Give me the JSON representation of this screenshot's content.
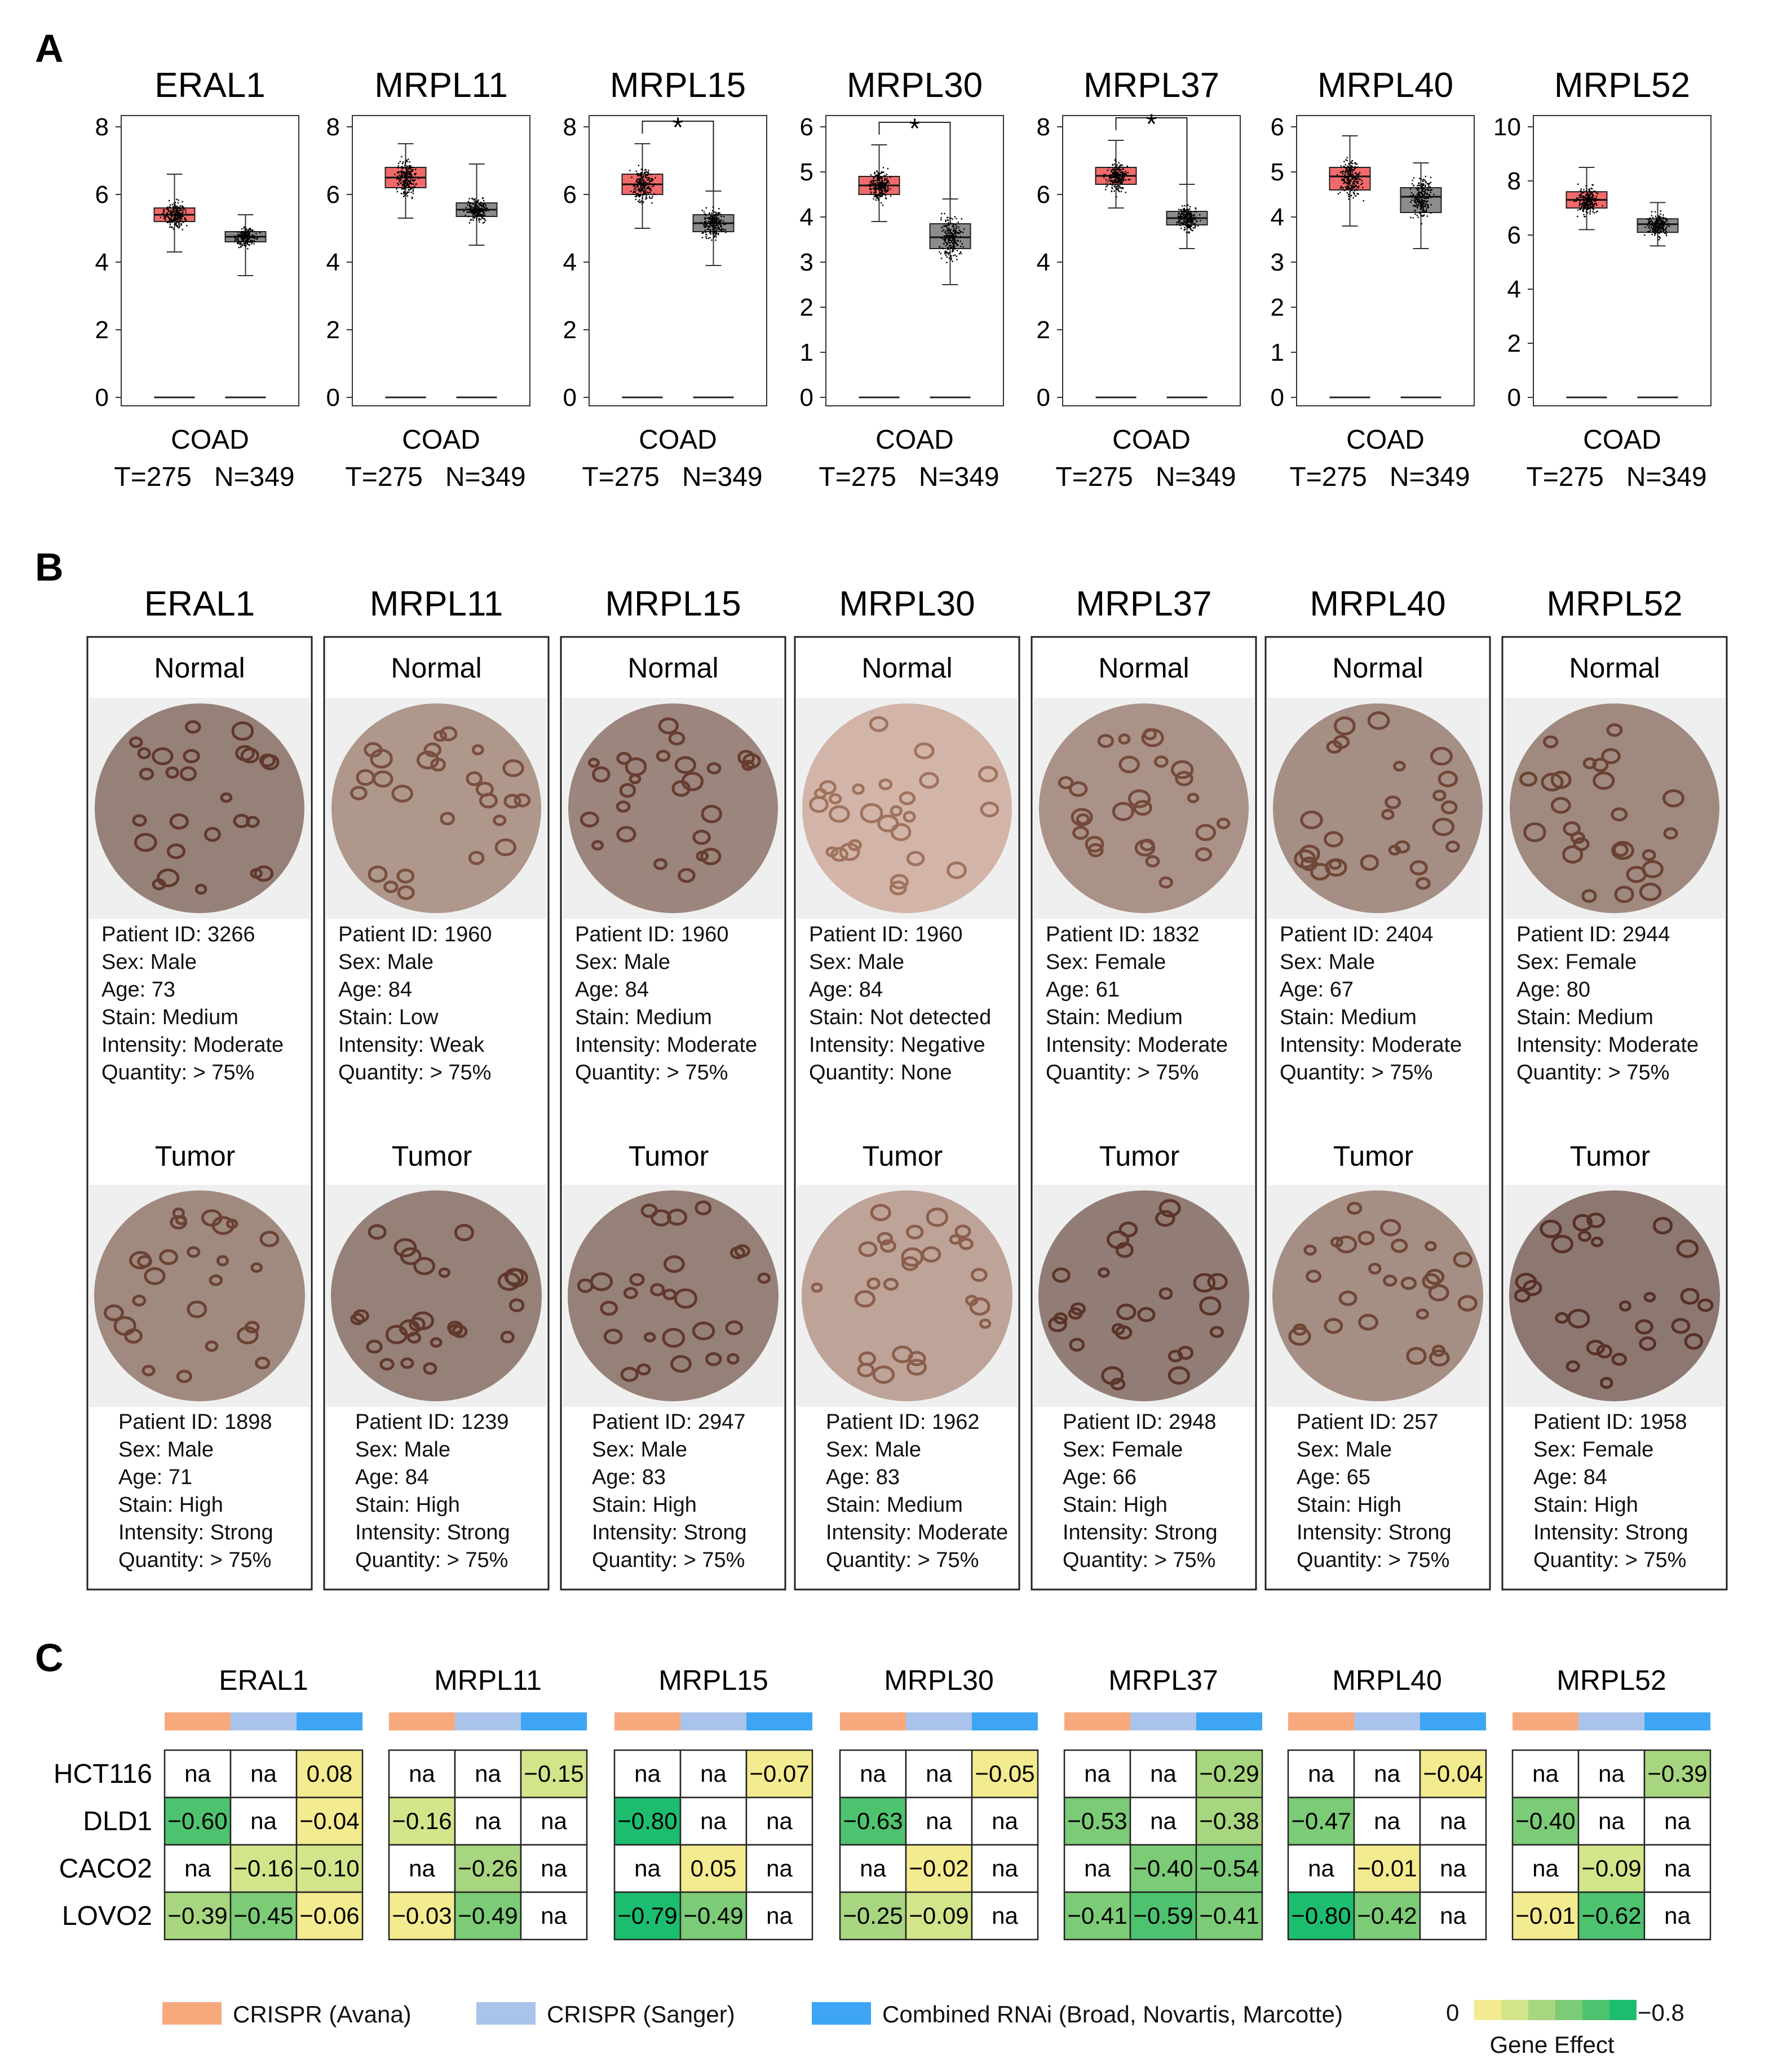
{
  "panels": {
    "a": "A",
    "b": "B",
    "c": "C"
  },
  "genes": [
    "ERAL1",
    "MRPL11",
    "MRPL15",
    "MRPL30",
    "MRPL37",
    "MRPL40",
    "MRPL52"
  ],
  "colors": {
    "tumor_box": "#f26a6a",
    "normal_box": "#8c8c8c",
    "background_tissue": "#efefef",
    "crispr_avana": "#f7a97d",
    "crispr_sanger": "#a9c3ea",
    "rnai": "#3da5f4"
  },
  "chart_data": {
    "type": "box",
    "cohort_label": "COAD",
    "group_label": "T=275   N=349",
    "groups": [
      "T",
      "N"
    ],
    "plots": [
      {
        "gene": "ERAL1",
        "ylim": [
          0,
          8
        ],
        "yticks": [
          "0",
          "2",
          "4",
          "6",
          "8"
        ],
        "significant": false,
        "tumor": {
          "q1": 5.2,
          "median": 5.4,
          "q3": 5.6,
          "whisker_low": 4.3,
          "whisker_high": 6.6
        },
        "normal": {
          "q1": 4.6,
          "median": 4.75,
          "q3": 4.9,
          "whisker_low": 3.6,
          "whisker_high": 5.4
        }
      },
      {
        "gene": "MRPL11",
        "ylim": [
          0,
          8
        ],
        "yticks": [
          "0",
          "2",
          "4",
          "6",
          "8"
        ],
        "significant": false,
        "tumor": {
          "q1": 6.2,
          "median": 6.5,
          "q3": 6.8,
          "whisker_low": 5.3,
          "whisker_high": 7.5
        },
        "normal": {
          "q1": 5.35,
          "median": 5.55,
          "q3": 5.75,
          "whisker_low": 4.5,
          "whisker_high": 6.9
        }
      },
      {
        "gene": "MRPL15",
        "ylim": [
          0,
          8
        ],
        "yticks": [
          "0",
          "2",
          "4",
          "6",
          "8"
        ],
        "significant": true,
        "tumor": {
          "q1": 6.0,
          "median": 6.3,
          "q3": 6.6,
          "whisker_low": 5.0,
          "whisker_high": 7.5
        },
        "normal": {
          "q1": 4.9,
          "median": 5.15,
          "q3": 5.4,
          "whisker_low": 3.9,
          "whisker_high": 6.1
        }
      },
      {
        "gene": "MRPL30",
        "ylim": [
          0,
          6
        ],
        "yticks": [
          "0",
          "1",
          "2",
          "3",
          "4",
          "5",
          "6"
        ],
        "significant": true,
        "tumor": {
          "q1": 4.5,
          "median": 4.7,
          "q3": 4.9,
          "whisker_low": 3.9,
          "whisker_high": 5.6
        },
        "normal": {
          "q1": 3.3,
          "median": 3.55,
          "q3": 3.85,
          "whisker_low": 2.5,
          "whisker_high": 4.4
        }
      },
      {
        "gene": "MRPL37",
        "ylim": [
          0,
          8
        ],
        "yticks": [
          "0",
          "2",
          "4",
          "6",
          "8"
        ],
        "significant": true,
        "tumor": {
          "q1": 6.3,
          "median": 6.55,
          "q3": 6.8,
          "whisker_low": 5.6,
          "whisker_high": 7.6
        },
        "normal": {
          "q1": 5.1,
          "median": 5.3,
          "q3": 5.5,
          "whisker_low": 4.4,
          "whisker_high": 6.3
        }
      },
      {
        "gene": "MRPL40",
        "ylim": [
          0,
          6
        ],
        "yticks": [
          "0",
          "1",
          "2",
          "3",
          "4",
          "5",
          "6"
        ],
        "significant": false,
        "tumor": {
          "q1": 4.6,
          "median": 4.9,
          "q3": 5.1,
          "whisker_low": 3.8,
          "whisker_high": 5.8
        },
        "normal": {
          "q1": 4.1,
          "median": 4.45,
          "q3": 4.65,
          "whisker_low": 3.3,
          "whisker_high": 5.2
        }
      },
      {
        "gene": "MRPL52",
        "ylim": [
          0,
          10
        ],
        "yticks": [
          "0",
          "2",
          "4",
          "6",
          "8",
          "10"
        ],
        "significant": false,
        "tumor": {
          "q1": 7.0,
          "median": 7.3,
          "q3": 7.6,
          "whisker_low": 6.2,
          "whisker_high": 8.5
        },
        "normal": {
          "q1": 6.1,
          "median": 6.4,
          "q3": 6.6,
          "whisker_low": 5.6,
          "whisker_high": 7.2
        }
      }
    ]
  },
  "ihc": {
    "normal_label": "Normal",
    "tumor_label": "Tumor",
    "stain_intensity": {
      "normal": [
        0.85,
        0.6,
        0.8,
        0.25,
        0.65,
        0.7,
        0.75
      ],
      "tumor": [
        0.75,
        0.85,
        0.85,
        0.45,
        0.9,
        0.7,
        0.95
      ]
    },
    "normal": [
      [
        "Patient ID: 3266",
        "Sex: Male",
        "Age: 73",
        "Stain: Medium",
        "Intensity: Moderate",
        "Quantity: > 75%"
      ],
      [
        "Patient ID: 1960",
        "Sex: Male",
        "Age: 84",
        "Stain: Low",
        "Intensity: Weak",
        "Quantity: > 75%"
      ],
      [
        "Patient ID: 1960",
        "Sex: Male",
        "Age: 84",
        "Stain: Medium",
        "Intensity: Moderate",
        "Quantity: > 75%"
      ],
      [
        "Patient ID: 1960",
        "Sex: Male",
        "Age: 84",
        "Stain: Not detected",
        "Intensity: Negative",
        "Quantity: None"
      ],
      [
        "Patient ID: 1832",
        "Sex: Female",
        "Age: 61",
        "Stain: Medium",
        "Intensity: Moderate",
        "Quantity: > 75%"
      ],
      [
        "Patient ID: 2404",
        "Sex: Male",
        "Age: 67",
        "Stain: Medium",
        "Intensity: Moderate",
        "Quantity: > 75%"
      ],
      [
        "Patient ID: 2944",
        "Sex: Female",
        "Age: 80",
        "Stain: Medium",
        "Intensity: Moderate",
        "Quantity: > 75%"
      ]
    ],
    "tumor": [
      [
        "Patient ID: 1898",
        "Sex: Male",
        "Age: 71",
        "Stain: High",
        "Intensity: Strong",
        "Quantity: > 75%"
      ],
      [
        "Patient ID: 1239",
        "Sex: Male",
        "Age: 84",
        "Stain: High",
        "Intensity: Strong",
        "Quantity: > 75%"
      ],
      [
        "Patient ID: 2947",
        "Sex: Male",
        "Age: 83",
        "Stain: High",
        "Intensity: Strong",
        "Quantity: > 75%"
      ],
      [
        "Patient ID: 1962",
        "Sex: Male",
        "Age: 83",
        "Stain: Medium",
        "Intensity: Moderate",
        "Quantity: > 75%"
      ],
      [
        "Patient ID: 2948",
        "Sex: Female",
        "Age: 66",
        "Stain: High",
        "Intensity: Strong",
        "Quantity: > 75%"
      ],
      [
        "Patient ID: 257",
        "Sex: Male",
        "Age: 65",
        "Stain: High",
        "Intensity: Strong",
        "Quantity: > 75%"
      ],
      [
        "Patient ID: 1958",
        "Sex: Female",
        "Age: 84",
        "Stain: High",
        "Intensity: Strong",
        "Quantity: > 75%"
      ]
    ]
  },
  "heatmap": {
    "cell_lines": [
      "HCT116",
      "DLD1",
      "CACO2",
      "LOVO2"
    ],
    "sources": [
      "CRISPR (Avana)",
      "CRISPR (Sanger)",
      "Combined RNAi (Broad, Novartis, Marcotte)"
    ],
    "values": [
      [
        [
          "na",
          "na",
          "0.08"
        ],
        [
          "−0.60",
          "na",
          "−0.04"
        ],
        [
          "na",
          "−0.16",
          "−0.10"
        ],
        [
          "−0.39",
          "−0.45",
          "−0.06"
        ]
      ],
      [
        [
          "na",
          "na",
          "−0.15"
        ],
        [
          "−0.16",
          "na",
          "na"
        ],
        [
          "na",
          "−0.26",
          "na"
        ],
        [
          "−0.03",
          "−0.49",
          "na"
        ]
      ],
      [
        [
          "na",
          "na",
          "−0.07"
        ],
        [
          "−0.80",
          "na",
          "na"
        ],
        [
          "na",
          "0.05",
          "na"
        ],
        [
          "−0.79",
          "−0.49",
          "na"
        ]
      ],
      [
        [
          "na",
          "na",
          "−0.05"
        ],
        [
          "−0.63",
          "na",
          "na"
        ],
        [
          "na",
          "−0.02",
          "na"
        ],
        [
          "−0.25",
          "−0.09",
          "na"
        ]
      ],
      [
        [
          "na",
          "na",
          "−0.29"
        ],
        [
          "−0.53",
          "na",
          "−0.38"
        ],
        [
          "na",
          "−0.40",
          "−0.54"
        ],
        [
          "−0.41",
          "−0.59",
          "−0.41"
        ]
      ],
      [
        [
          "na",
          "na",
          "−0.04"
        ],
        [
          "−0.47",
          "na",
          "na"
        ],
        [
          "na",
          "−0.01",
          "na"
        ],
        [
          "−0.80",
          "−0.42",
          "na"
        ]
      ],
      [
        [
          "na",
          "na",
          "−0.39"
        ],
        [
          "−0.40",
          "na",
          "na"
        ],
        [
          "na",
          "−0.09",
          "na"
        ],
        [
          "−0.01",
          "−0.62",
          "na"
        ]
      ]
    ],
    "scale": {
      "min_label": "0",
      "max_label": "−0.8",
      "title": "Gene Effect",
      "colors": [
        "#f3eb8f",
        "#d3e58a",
        "#a8d57f",
        "#7ccb76",
        "#4ec36f",
        "#1dbd70"
      ]
    }
  }
}
